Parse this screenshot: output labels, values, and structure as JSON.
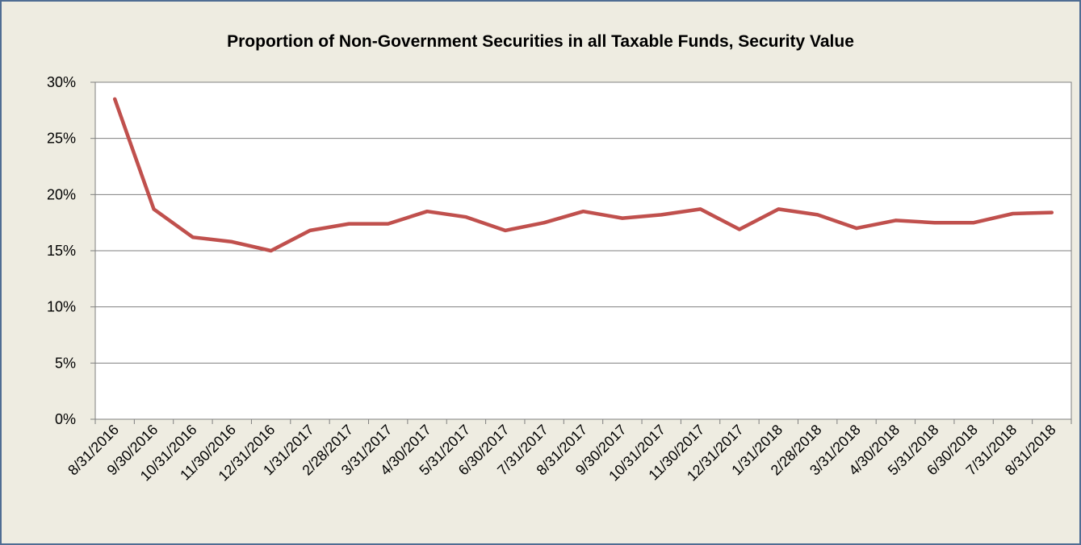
{
  "chart_data": {
    "type": "line",
    "title": "Proportion of Non-Government Securities in all Taxable Funds, Security Value",
    "xlabel": "",
    "ylabel": "",
    "ylim": [
      0,
      30
    ],
    "y_ticks": [
      "0%",
      "5%",
      "10%",
      "15%",
      "20%",
      "25%",
      "30%"
    ],
    "y_tick_values": [
      0,
      5,
      10,
      15,
      20,
      25,
      30
    ],
    "grid": true,
    "legend": "none",
    "categories": [
      "8/31/2016",
      "9/30/2016",
      "10/31/2016",
      "11/30/2016",
      "12/31/2016",
      "1/31/2017",
      "2/28/2017",
      "3/31/2017",
      "4/30/2017",
      "5/31/2017",
      "6/30/2017",
      "7/31/2017",
      "8/31/2017",
      "9/30/2017",
      "10/31/2017",
      "11/30/2017",
      "12/31/2017",
      "1/31/2018",
      "2/28/2018",
      "3/31/2018",
      "4/30/2018",
      "5/31/2018",
      "6/30/2018",
      "7/31/2018",
      "8/31/2018"
    ],
    "series": [
      {
        "color": "#c0504d",
        "values": [
          28.5,
          18.7,
          16.2,
          15.8,
          15.0,
          16.8,
          17.4,
          17.4,
          18.5,
          18.0,
          16.8,
          17.5,
          18.5,
          17.9,
          18.2,
          18.7,
          16.9,
          18.7,
          18.2,
          17.0,
          17.7,
          17.5,
          17.5,
          18.3,
          18.4
        ]
      }
    ]
  },
  "colors": {
    "background": "#eeece1",
    "plot_area": "#ffffff",
    "border": "#4f6d93",
    "line": "#c0504d"
  }
}
